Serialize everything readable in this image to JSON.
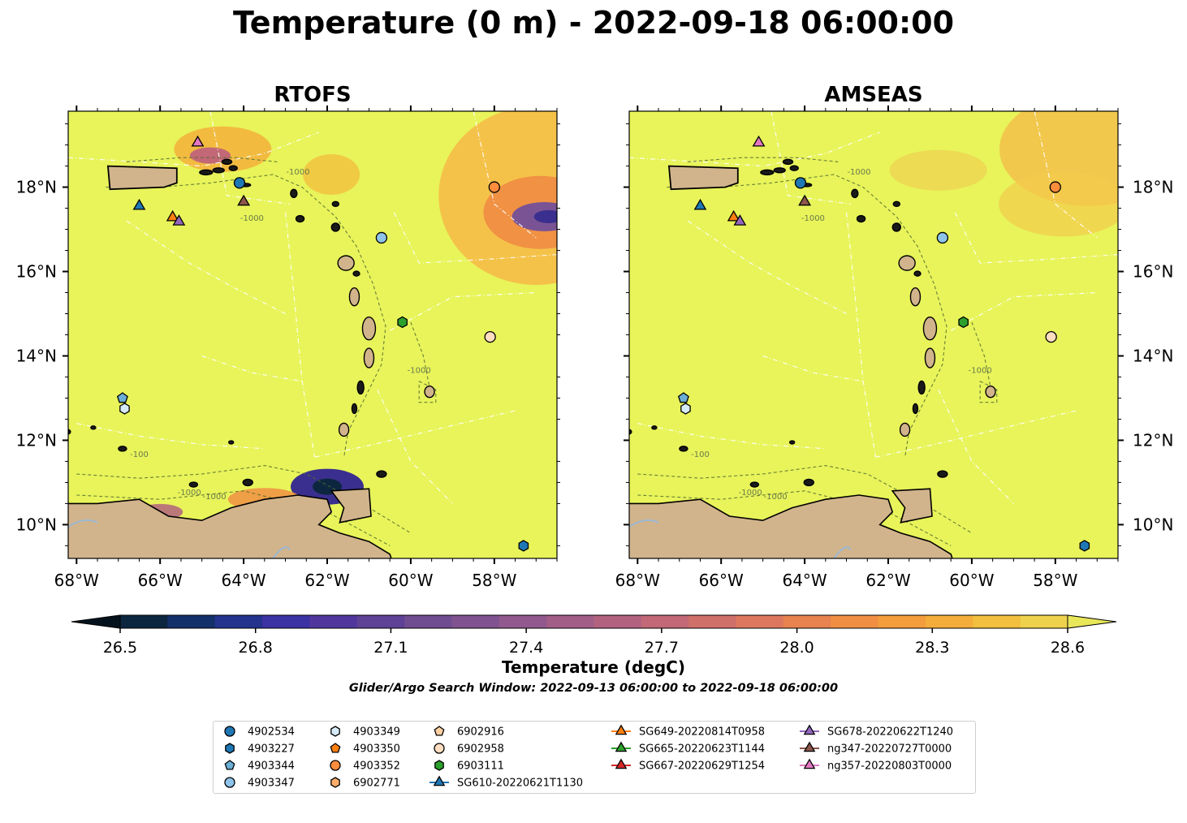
{
  "title": "Temperature (0 m) - 2022-09-18 06:00:00",
  "panels": [
    {
      "name": "RTOFS"
    },
    {
      "name": "AMSEAS"
    }
  ],
  "colorbar": {
    "label": "Temperature (degC)",
    "ticks": [
      "26.5",
      "26.8",
      "27.1",
      "27.4",
      "27.7",
      "28.0",
      "28.3",
      "28.6"
    ],
    "range": [
      26.5,
      28.6
    ],
    "extend": "both",
    "colormap": "thermal",
    "colors": [
      "#04121d",
      "#0d2640",
      "#13306a",
      "#24338d",
      "#3b32a4",
      "#51379d",
      "#5f4196",
      "#704c91",
      "#805390",
      "#91598e",
      "#a25e87",
      "#b2627f",
      "#c26876",
      "#d0706b",
      "#dd785e",
      "#e8824f",
      "#f08f43",
      "#f39d3c",
      "#f4ad3a",
      "#f2bf3f",
      "#eed14d",
      "#e8e75a"
    ]
  },
  "subtitle": "Glider/Argo Search Window: 2022-09-13 06:00:00 to 2022-09-18 06:00:00",
  "axes": {
    "x_ticks": [
      "68°W",
      "66°W",
      "64°W",
      "62°W",
      "60°W",
      "58°W"
    ],
    "y_ticks": [
      "18°N",
      "16°N",
      "14°N",
      "12°N",
      "10°N"
    ],
    "xlim": [
      -68.2,
      -56.5
    ],
    "ylim": [
      9.2,
      19.8
    ]
  },
  "contour_labels": [
    "-100",
    "-1000"
  ],
  "colors": {
    "land": "#d2b48c",
    "ocean_warm": "#e8f45a",
    "eez_lines": "#ffffff",
    "bathy_contours": "#556b2f"
  },
  "chart_data": {
    "type": "map",
    "variable": "Temperature (0 m)",
    "units": "degC",
    "time": "2022-09-18 06:00:00",
    "markers": [
      {
        "id": "4902534",
        "type": "argo",
        "shape": "circle",
        "color": "#1f77b4",
        "lon": -64.1,
        "lat": 18.1
      },
      {
        "id": "4903227",
        "type": "argo",
        "shape": "hexagon",
        "color": "#1f77b4",
        "lon": -57.3,
        "lat": 9.5
      },
      {
        "id": "4903344",
        "type": "argo",
        "shape": "pentagon",
        "color": "#6baed6",
        "lon": -66.9,
        "lat": 13.0
      },
      {
        "id": "4903347",
        "type": "argo",
        "shape": "circle",
        "color": "#8ec4ea",
        "lon": -60.7,
        "lat": 16.8
      },
      {
        "id": "4903349",
        "type": "argo",
        "shape": "hexagon",
        "color": "#d6ecfa",
        "lon": -66.85,
        "lat": 12.75
      },
      {
        "id": "4903350",
        "type": "argo",
        "shape": "pentagon",
        "color": "#ff7f0e",
        "lon": null,
        "lat": null
      },
      {
        "id": "4903352",
        "type": "argo",
        "shape": "circle",
        "color": "#fd8d3c",
        "lon": -58.0,
        "lat": 18.0
      },
      {
        "id": "6902771",
        "type": "argo",
        "shape": "hexagon",
        "color": "#fdae6b",
        "lon": null,
        "lat": null
      },
      {
        "id": "6902916",
        "type": "argo",
        "shape": "pentagon",
        "color": "#fdd0a2",
        "lon": null,
        "lat": null
      },
      {
        "id": "6902958",
        "type": "argo",
        "shape": "circle",
        "color": "#feddc0",
        "lon": -58.1,
        "lat": 14.45
      },
      {
        "id": "6903111",
        "type": "argo",
        "shape": "hexagon",
        "color": "#2ca02c",
        "lon": -60.2,
        "lat": 14.8
      },
      {
        "id": "SG610-20220621T1130",
        "type": "glider",
        "shape": "triangle",
        "color": "#1f77b4",
        "lon": -66.5,
        "lat": 17.55
      },
      {
        "id": "SG649-20220814T0958",
        "type": "glider",
        "shape": "triangle",
        "color": "#ff7f0e",
        "lon": -65.7,
        "lat": 17.28
      },
      {
        "id": "SG665-20220623T1144",
        "type": "glider",
        "shape": "triangle",
        "color": "#2ca02c",
        "lon": null,
        "lat": null
      },
      {
        "id": "SG667-20220629T1254",
        "type": "glider",
        "shape": "triangle",
        "color": "#d62728",
        "lon": null,
        "lat": null
      },
      {
        "id": "SG678-20220622T1240",
        "type": "glider",
        "shape": "triangle",
        "color": "#9467bd",
        "lon": -65.55,
        "lat": 17.18
      },
      {
        "id": "ng347-20220727T0000",
        "type": "glider",
        "shape": "triangle",
        "color": "#8c564b",
        "lon": -64.0,
        "lat": 17.65
      },
      {
        "id": "ng357-20220803T0000",
        "type": "glider",
        "shape": "triangle",
        "color": "#e377c2",
        "lon": -65.1,
        "lat": 19.05
      }
    ]
  },
  "legend_entries": [
    {
      "label": "4902534",
      "shape": "circle",
      "color": "#1f77b4",
      "line": false
    },
    {
      "label": "4903227",
      "shape": "hexagon",
      "color": "#1f77b4",
      "line": false
    },
    {
      "label": "4903344",
      "shape": "pentagon",
      "color": "#6baed6",
      "line": false
    },
    {
      "label": "4903347",
      "shape": "circle",
      "color": "#8ec4ea",
      "line": false
    },
    {
      "label": "4903349",
      "shape": "hexagon",
      "color": "#d6ecfa",
      "line": false
    },
    {
      "label": "4903350",
      "shape": "pentagon",
      "color": "#ff7f0e",
      "line": false
    },
    {
      "label": "4903352",
      "shape": "circle",
      "color": "#fd8d3c",
      "line": false
    },
    {
      "label": "6902771",
      "shape": "hexagon",
      "color": "#fdae6b",
      "line": false
    },
    {
      "label": "6902916",
      "shape": "pentagon",
      "color": "#fdd0a2",
      "line": false
    },
    {
      "label": "6902958",
      "shape": "circle",
      "color": "#feddc0",
      "line": false
    },
    {
      "label": "6903111",
      "shape": "hexagon",
      "color": "#2ca02c",
      "line": false
    },
    {
      "label": "SG610-20220621T1130",
      "shape": "triangle",
      "color": "#1f77b4",
      "line": true
    },
    {
      "label": "SG649-20220814T0958",
      "shape": "triangle",
      "color": "#ff7f0e",
      "line": true
    },
    {
      "label": "SG665-20220623T1144",
      "shape": "triangle",
      "color": "#2ca02c",
      "line": true
    },
    {
      "label": "SG667-20220629T1254",
      "shape": "triangle",
      "color": "#d62728",
      "line": true
    },
    {
      "label": "SG678-20220622T1240",
      "shape": "triangle",
      "color": "#9467bd",
      "line": true
    },
    {
      "label": "ng347-20220727T0000",
      "shape": "triangle",
      "color": "#8c564b",
      "line": true
    },
    {
      "label": "ng357-20220803T0000",
      "shape": "triangle",
      "color": "#e377c2",
      "line": true
    }
  ]
}
